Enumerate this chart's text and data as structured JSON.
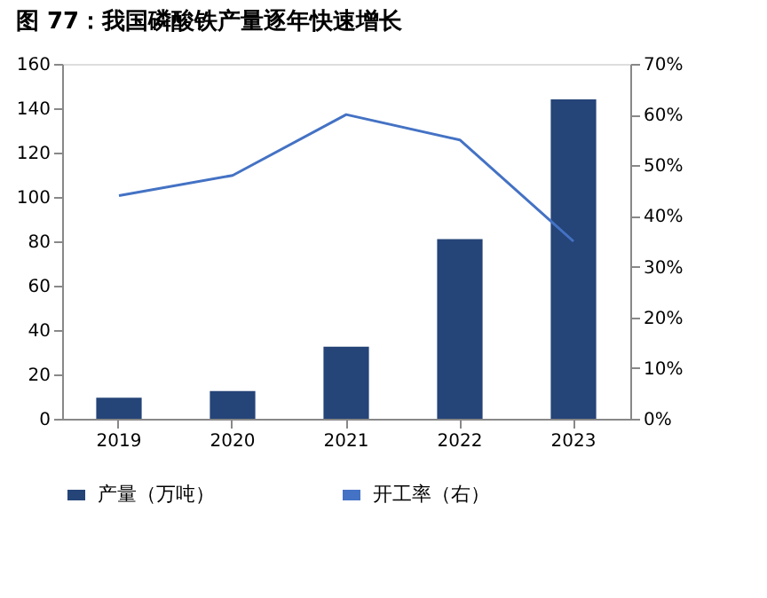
{
  "chart_data": {
    "type": "bar",
    "title": "图 77：我国磷酸铁产量逐年快速增长",
    "categories": [
      "2019",
      "2020",
      "2021",
      "2022",
      "2023"
    ],
    "series": [
      {
        "name": "产量（万吨）",
        "color": "#254478",
        "values": [
          9.5,
          12.5,
          32.5,
          81,
          144
        ]
      },
      {
        "name": "开工率（右）",
        "type": "line",
        "axis": "y2",
        "color": "#4472c4",
        "values": [
          44,
          48,
          60,
          55,
          35
        ]
      }
    ],
    "ylim": [
      0,
      160
    ],
    "yticks": [
      0,
      20,
      40,
      60,
      80,
      100,
      120,
      140,
      160
    ],
    "y2lim": [
      0,
      70
    ],
    "y2ticks": [
      {
        "value": 0,
        "label": "0%"
      },
      {
        "value": 10,
        "label": "10%"
      },
      {
        "value": 20,
        "label": "20%"
      },
      {
        "value": 30,
        "label": "30%"
      },
      {
        "value": 40,
        "label": "40%"
      },
      {
        "value": 50,
        "label": "50%"
      },
      {
        "value": 60,
        "label": "60%"
      },
      {
        "value": 70,
        "label": "70%"
      }
    ],
    "grid": false,
    "legend": "bottom",
    "marker": "none",
    "line_style": "solid"
  }
}
